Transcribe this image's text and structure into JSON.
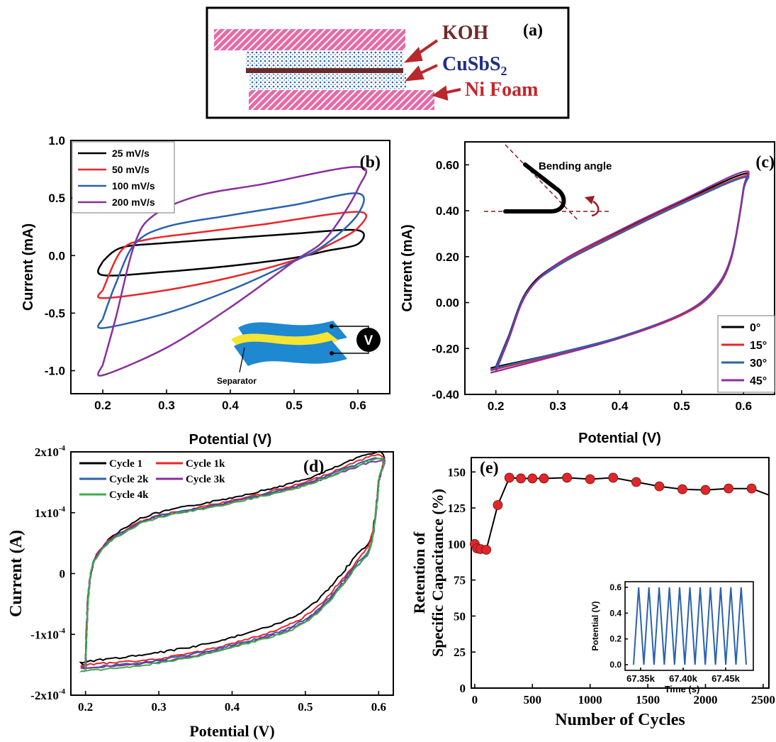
{
  "panel_a": {
    "label": "(a)",
    "layers": [
      "KOH",
      "CuSbS",
      "Ni Foam"
    ],
    "cusbs_subscript": "2"
  },
  "chart_data": [
    {
      "id": "b",
      "type": "line",
      "panel_label": "(b)",
      "xlabel": "Potential (V)",
      "ylabel": "Current (mA)",
      "xlim": [
        0.15,
        0.65
      ],
      "ylim": [
        -1.2,
        1.0
      ],
      "xticks": [
        0.2,
        0.3,
        0.4,
        0.5,
        0.6
      ],
      "yticks": [
        1.0,
        0.5,
        0.0,
        -0.5,
        -1.0
      ],
      "ytick_labels": [
        "1.0",
        "0.5",
        "0.0",
        "-0.5",
        "-1.0"
      ],
      "legend_position": "top-left",
      "series": [
        {
          "name": "25 mV/s",
          "color": "#000000",
          "top": [
            [
              0.2,
              -0.05
            ],
            [
              0.23,
              0.07
            ],
            [
              0.3,
              0.11
            ],
            [
              0.4,
              0.15
            ],
            [
              0.5,
              0.19
            ],
            [
              0.6,
              0.22
            ]
          ],
          "bottom": [
            [
              0.6,
              0.1
            ],
            [
              0.55,
              0.04
            ],
            [
              0.5,
              -0.02
            ],
            [
              0.4,
              -0.09
            ],
            [
              0.3,
              -0.14
            ],
            [
              0.2,
              -0.17
            ]
          ]
        },
        {
          "name": "50 mV/s",
          "color": "#e8262a",
          "top": [
            [
              0.2,
              -0.3
            ],
            [
              0.23,
              0.05
            ],
            [
              0.27,
              0.14
            ],
            [
              0.35,
              0.2
            ],
            [
              0.45,
              0.27
            ],
            [
              0.6,
              0.38
            ]
          ],
          "bottom": [
            [
              0.6,
              0.24
            ],
            [
              0.55,
              0.08
            ],
            [
              0.5,
              -0.04
            ],
            [
              0.4,
              -0.19
            ],
            [
              0.3,
              -0.3
            ],
            [
              0.2,
              -0.37
            ]
          ]
        },
        {
          "name": "100 mV/s",
          "color": "#2a62ad",
          "top": [
            [
              0.2,
              -0.55
            ],
            [
              0.22,
              -0.25
            ],
            [
              0.25,
              0.1
            ],
            [
              0.3,
              0.25
            ],
            [
              0.4,
              0.35
            ],
            [
              0.5,
              0.44
            ],
            [
              0.6,
              0.54
            ]
          ],
          "bottom": [
            [
              0.6,
              0.36
            ],
            [
              0.55,
              0.1
            ],
            [
              0.5,
              -0.05
            ],
            [
              0.4,
              -0.3
            ],
            [
              0.3,
              -0.5
            ],
            [
              0.2,
              -0.63
            ]
          ]
        },
        {
          "name": "200 mV/s",
          "color": "#8a2f9c",
          "top": [
            [
              0.2,
              -0.95
            ],
            [
              0.22,
              -0.55
            ],
            [
              0.25,
              0.1
            ],
            [
              0.28,
              0.35
            ],
            [
              0.35,
              0.52
            ],
            [
              0.45,
              0.62
            ],
            [
              0.6,
              0.77
            ]
          ],
          "bottom": [
            [
              0.6,
              0.58
            ],
            [
              0.55,
              0.15
            ],
            [
              0.5,
              -0.05
            ],
            [
              0.4,
              -0.45
            ],
            [
              0.3,
              -0.8
            ],
            [
              0.2,
              -1.04
            ]
          ]
        }
      ],
      "inset_label": "Separator",
      "inset_meter": "V"
    },
    {
      "id": "c",
      "type": "line",
      "panel_label": "(c)",
      "xlabel": "Potential (V)",
      "ylabel": "Current (mA)",
      "xlim": [
        0.15,
        0.65
      ],
      "ylim": [
        -0.4,
        0.7
      ],
      "xticks": [
        0.2,
        0.3,
        0.4,
        0.5,
        0.6
      ],
      "yticks": [
        0.6,
        0.4,
        0.2,
        0.0,
        -0.2,
        -0.4
      ],
      "ytick_labels": [
        "0.60",
        "0.40",
        "0.20",
        "0.00",
        "-0.20",
        "-0.40"
      ],
      "legend_position": "bottom-right",
      "annotation": "Bending angle",
      "series": [
        {
          "name": "0°",
          "color": "#000000",
          "top": [
            [
              0.2,
              -0.28
            ],
            [
              0.22,
              -0.15
            ],
            [
              0.25,
              0.05
            ],
            [
              0.3,
              0.17
            ],
            [
              0.4,
              0.31
            ],
            [
              0.5,
              0.44
            ],
            [
              0.6,
              0.56
            ]
          ],
          "bottom": [
            [
              0.6,
              0.5
            ],
            [
              0.58,
              0.2
            ],
            [
              0.55,
              0.05
            ],
            [
              0.5,
              -0.05
            ],
            [
              0.4,
              -0.15
            ],
            [
              0.3,
              -0.22
            ],
            [
              0.2,
              -0.28
            ]
          ]
        },
        {
          "name": "15°",
          "color": "#e8262a",
          "top": [
            [
              0.2,
              -0.29
            ],
            [
              0.22,
              -0.16
            ],
            [
              0.25,
              0.04
            ],
            [
              0.3,
              0.165
            ],
            [
              0.4,
              0.305
            ],
            [
              0.5,
              0.435
            ],
            [
              0.6,
              0.55
            ]
          ],
          "bottom": [
            [
              0.6,
              0.5
            ],
            [
              0.58,
              0.19
            ],
            [
              0.55,
              0.04
            ],
            [
              0.5,
              -0.055
            ],
            [
              0.4,
              -0.155
            ],
            [
              0.3,
              -0.225
            ],
            [
              0.2,
              -0.29
            ]
          ]
        },
        {
          "name": "30°",
          "color": "#2a62ad",
          "top": [
            [
              0.2,
              -0.285
            ],
            [
              0.22,
              -0.155
            ],
            [
              0.25,
              0.045
            ],
            [
              0.3,
              0.16
            ],
            [
              0.4,
              0.3
            ],
            [
              0.5,
              0.43
            ],
            [
              0.6,
              0.545
            ]
          ],
          "bottom": [
            [
              0.6,
              0.49
            ],
            [
              0.58,
              0.195
            ],
            [
              0.55,
              0.045
            ],
            [
              0.5,
              -0.05
            ],
            [
              0.4,
              -0.15
            ],
            [
              0.3,
              -0.22
            ],
            [
              0.2,
              -0.285
            ]
          ]
        },
        {
          "name": "45°",
          "color": "#8a2f9c",
          "top": [
            [
              0.2,
              -0.3
            ],
            [
              0.22,
              -0.165
            ],
            [
              0.25,
              0.04
            ],
            [
              0.3,
              0.17
            ],
            [
              0.4,
              0.315
            ],
            [
              0.5,
              0.445
            ],
            [
              0.6,
              0.57
            ]
          ],
          "bottom": [
            [
              0.6,
              0.5
            ],
            [
              0.58,
              0.2
            ],
            [
              0.55,
              0.05
            ],
            [
              0.5,
              -0.05
            ],
            [
              0.4,
              -0.155
            ],
            [
              0.3,
              -0.23
            ],
            [
              0.2,
              -0.3
            ]
          ]
        }
      ]
    },
    {
      "id": "d",
      "type": "line",
      "panel_label": "(d)",
      "xlabel": "Potential (V)",
      "ylabel": "Current (A)",
      "xlim": [
        0.18,
        0.62
      ],
      "ylim": [
        -0.0002,
        0.0002
      ],
      "xticks": [
        0.2,
        0.3,
        0.4,
        0.5,
        0.6
      ],
      "yticks": [
        0.0002,
        0.0001,
        0.0,
        -0.0001,
        -0.0002
      ],
      "ytick_labels": [
        "2x10",
        "1x10",
        "0",
        "-1x10",
        "-2x10"
      ],
      "ytick_exponent": "-4",
      "legend_position": "top-left",
      "series": [
        {
          "name": "Cycle 1",
          "color": "#000000",
          "top": [
            [
              0.2,
              -0.00015
            ],
            [
              0.205,
              -2e-05
            ],
            [
              0.22,
              4e-05
            ],
            [
              0.26,
              8e-05
            ],
            [
              0.3,
              0.0001
            ],
            [
              0.4,
              0.000125
            ],
            [
              0.5,
              0.000155
            ],
            [
              0.6,
              0.0002
            ]
          ],
          "bottom": [
            [
              0.6,
              0.00015
            ],
            [
              0.59,
              6e-05
            ],
            [
              0.57,
              3e-05
            ],
            [
              0.5,
              -6e-05
            ],
            [
              0.4,
              -0.000105
            ],
            [
              0.3,
              -0.00013
            ],
            [
              0.2,
              -0.000145
            ]
          ]
        },
        {
          "name": "Cycle 1k",
          "color": "#e8262a",
          "top": [
            [
              0.2,
              -0.000155
            ],
            [
              0.205,
              -2e-05
            ],
            [
              0.22,
              4e-05
            ],
            [
              0.26,
              7.5e-05
            ],
            [
              0.3,
              9.5e-05
            ],
            [
              0.4,
              0.00012
            ],
            [
              0.5,
              0.00015
            ],
            [
              0.6,
              0.000195
            ]
          ],
          "bottom": [
            [
              0.6,
              0.00015
            ],
            [
              0.59,
              6e-05
            ],
            [
              0.57,
              2e-05
            ],
            [
              0.5,
              -7e-05
            ],
            [
              0.4,
              -0.000115
            ],
            [
              0.3,
              -0.00014
            ],
            [
              0.2,
              -0.00015
            ]
          ]
        },
        {
          "name": "Cycle 2k",
          "color": "#2a62ad",
          "top": [
            [
              0.2,
              -0.000155
            ],
            [
              0.205,
              -2e-05
            ],
            [
              0.22,
              3.8e-05
            ],
            [
              0.26,
              7.4e-05
            ],
            [
              0.3,
              9.4e-05
            ],
            [
              0.4,
              0.000118
            ],
            [
              0.5,
              0.000148
            ],
            [
              0.6,
              0.00019
            ]
          ],
          "bottom": [
            [
              0.6,
              0.00015
            ],
            [
              0.59,
              5e-05
            ],
            [
              0.57,
              1.5e-05
            ],
            [
              0.5,
              -7.5e-05
            ],
            [
              0.4,
              -0.000118
            ],
            [
              0.3,
              -0.000142
            ],
            [
              0.2,
              -0.000155
            ]
          ]
        },
        {
          "name": "Cycle 3k",
          "color": "#8a2f9c",
          "top": [
            [
              0.2,
              -0.000155
            ],
            [
              0.205,
              -2e-05
            ],
            [
              0.22,
              3.7e-05
            ],
            [
              0.26,
              7.3e-05
            ],
            [
              0.3,
              9.3e-05
            ],
            [
              0.4,
              0.000117
            ],
            [
              0.5,
              0.000146
            ],
            [
              0.6,
              0.000185
            ]
          ],
          "bottom": [
            [
              0.6,
              0.00015
            ],
            [
              0.59,
              5e-05
            ],
            [
              0.57,
              1.2e-05
            ],
            [
              0.5,
              -7.8e-05
            ],
            [
              0.4,
              -0.00012
            ],
            [
              0.3,
              -0.000145
            ],
            [
              0.2,
              -0.000155
            ]
          ]
        },
        {
          "name": "Cycle 4k",
          "color": "#3cae49",
          "top": [
            [
              0.2,
              -0.00016
            ],
            [
              0.205,
              -2e-05
            ],
            [
              0.22,
              3.6e-05
            ],
            [
              0.26,
              7.2e-05
            ],
            [
              0.3,
              9.2e-05
            ],
            [
              0.4,
              0.000116
            ],
            [
              0.5,
              0.000145
            ],
            [
              0.6,
              0.000188
            ]
          ],
          "bottom": [
            [
              0.6,
              0.00015
            ],
            [
              0.59,
              5e-05
            ],
            [
              0.57,
              1e-05
            ],
            [
              0.5,
              -8e-05
            ],
            [
              0.4,
              -0.000122
            ],
            [
              0.3,
              -0.000147
            ],
            [
              0.2,
              -0.00016
            ]
          ]
        }
      ]
    },
    {
      "id": "e",
      "type": "line",
      "panel_label": "(e)",
      "xlabel": "Number of Cycles",
      "ylabel_lines": [
        "Retention of",
        "Specific Capacitance (%)"
      ],
      "xlim": [
        -30,
        2550
      ],
      "ylim": [
        0,
        160
      ],
      "xticks": [
        0,
        500,
        1000,
        1500,
        2000,
        2500
      ],
      "yticks": [
        0,
        25,
        50,
        75,
        100,
        125,
        150
      ],
      "series": [
        {
          "name": "retention",
          "color": "#000000",
          "marker_color": "#e0262a",
          "x": [
            0,
            20,
            50,
            100,
            200,
            300,
            400,
            500,
            600,
            800,
            1000,
            1200,
            1400,
            1600,
            1800,
            2000,
            2200,
            2400,
            2550
          ],
          "y": [
            100,
            97,
            96.5,
            96,
            127,
            146,
            145.5,
            145.5,
            145.5,
            146,
            145,
            146,
            143,
            140,
            138,
            137.5,
            138.5,
            138.5,
            134
          ]
        }
      ],
      "inset": {
        "xlabel": "Time (s)",
        "ylabel": "Potential (V)",
        "xtick_labels": [
          "67.35k",
          "67.40k",
          "67.45k"
        ],
        "yticks": [
          0.0,
          0.2,
          0.4,
          0.6
        ],
        "ytick_labels": [
          "0.0",
          "0.2",
          "0.4",
          "0.6"
        ],
        "color": "#2a62ad",
        "cycles": 11,
        "vmin": 0.0,
        "vmax": 0.6
      }
    }
  ]
}
